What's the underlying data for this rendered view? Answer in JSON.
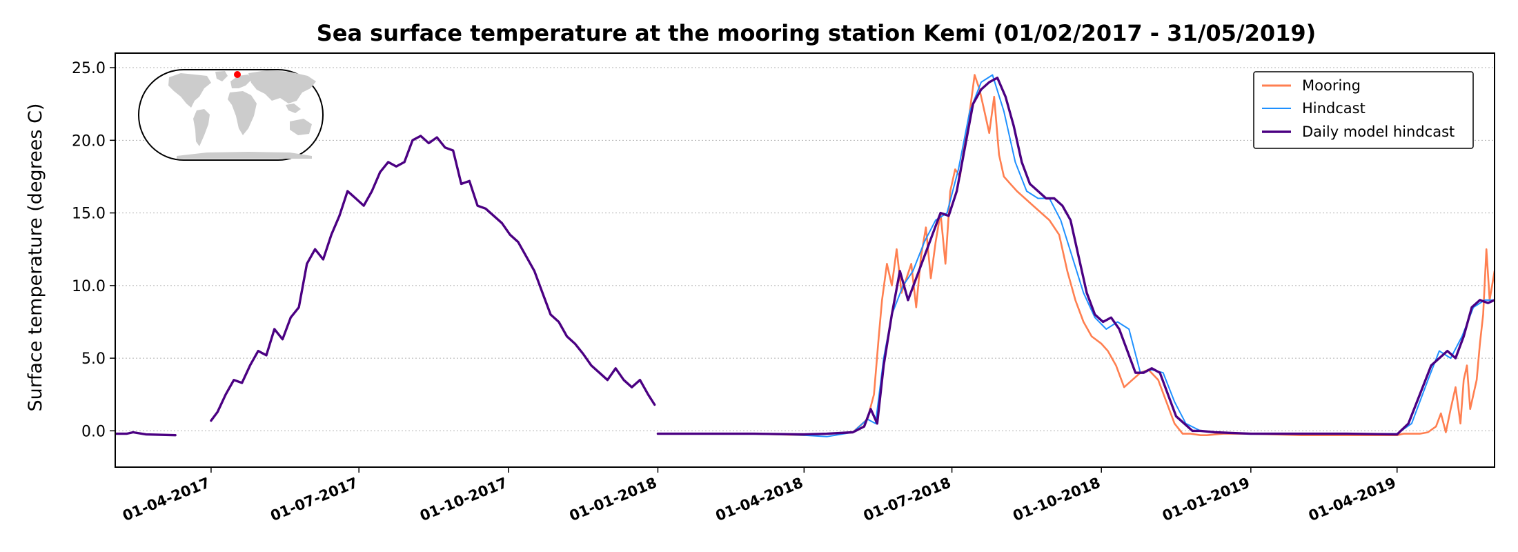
{
  "chart_data": {
    "type": "line",
    "title": "Sea surface temperature at the mooring station Kemi (01/02/2017 - 31/05/2019)",
    "xlabel": "",
    "ylabel": "Surface temperature (degrees C)",
    "xlim": [
      "2017-02-01",
      "2019-05-31"
    ],
    "ylim": [
      -2.5,
      26
    ],
    "yticks": [
      0.0,
      5.0,
      10.0,
      15.0,
      20.0,
      25.0
    ],
    "ytick_labels": [
      "0.0",
      "5.0",
      "10.0",
      "15.0",
      "20.0",
      "25.0"
    ],
    "xticks": [
      "2017-04-01",
      "2017-07-01",
      "2017-10-01",
      "2018-01-01",
      "2018-04-01",
      "2018-07-01",
      "2018-10-01",
      "2019-01-01",
      "2019-04-01"
    ],
    "xtick_labels": [
      "01-04-2017",
      "01-07-2017",
      "01-10-2017",
      "01-01-2018",
      "01-04-2018",
      "01-07-2018",
      "01-10-2018",
      "01-01-2019",
      "01-04-2019"
    ],
    "grid": "y-dotted",
    "legend_position": "top-right",
    "series": [
      {
        "name": "Mooring",
        "color": "#ff7f50",
        "segments": [
          {
            "x": [
              "2018-01-01",
              "2018-02-01",
              "2018-03-01",
              "2018-04-01",
              "2018-05-01",
              "2018-05-10",
              "2018-05-14",
              "2018-05-17",
              "2018-05-19",
              "2018-05-22",
              "2018-05-25",
              "2018-05-28",
              "2018-05-31",
              "2018-06-03",
              "2018-06-06",
              "2018-06-09",
              "2018-06-12",
              "2018-06-15",
              "2018-06-18",
              "2018-06-21",
              "2018-06-24",
              "2018-06-27",
              "2018-06-30",
              "2018-07-03",
              "2018-07-06",
              "2018-07-09",
              "2018-07-12",
              "2018-07-15",
              "2018-07-18",
              "2018-07-21",
              "2018-07-24",
              "2018-07-27",
              "2018-07-30",
              "2018-08-02",
              "2018-08-06",
              "2018-08-10",
              "2018-08-15",
              "2018-08-20",
              "2018-08-25",
              "2018-08-30",
              "2018-09-05",
              "2018-09-10",
              "2018-09-15",
              "2018-09-20",
              "2018-09-25",
              "2018-10-01",
              "2018-10-05",
              "2018-10-10",
              "2018-10-15",
              "2018-10-20",
              "2018-10-25",
              "2018-10-30",
              "2018-11-05",
              "2018-11-10",
              "2018-11-15",
              "2018-11-20",
              "2018-11-25",
              "2018-12-01",
              "2018-12-05",
              "2018-12-15",
              "2019-01-01",
              "2019-02-01",
              "2019-03-01",
              "2019-04-01",
              "2019-04-05",
              "2019-04-10",
              "2019-04-15",
              "2019-04-20",
              "2019-04-25",
              "2019-04-28",
              "2019-05-01",
              "2019-05-04",
              "2019-05-07",
              "2019-05-10",
              "2019-05-12",
              "2019-05-14",
              "2019-05-16",
              "2019-05-18",
              "2019-05-20",
              "2019-05-22",
              "2019-05-24",
              "2019-05-26",
              "2019-05-28",
              "2019-05-31"
            ],
            "y": [
              -0.2,
              -0.2,
              -0.2,
              -0.3,
              -0.1,
              0.8,
              2.5,
              6.5,
              9.0,
              11.5,
              10.0,
              12.5,
              9.5,
              10.5,
              11.5,
              8.5,
              12.0,
              14.0,
              10.5,
              13.0,
              15.0,
              11.5,
              16.5,
              18.0,
              17.5,
              20.0,
              22.0,
              24.5,
              23.5,
              22.0,
              20.5,
              23.0,
              19.0,
              17.5,
              17.0,
              16.5,
              16.0,
              15.5,
              15.0,
              14.5,
              13.5,
              11.0,
              9.0,
              7.5,
              6.5,
              6.0,
              5.5,
              4.5,
              3.0,
              3.5,
              4.0,
              4.2,
              3.5,
              2.0,
              0.5,
              -0.2,
              -0.2,
              -0.3,
              -0.3,
              -0.2,
              -0.2,
              -0.3,
              -0.3,
              -0.3,
              -0.2,
              -0.2,
              -0.2,
              -0.1,
              0.3,
              1.2,
              -0.1,
              1.5,
              3.0,
              0.5,
              3.5,
              4.5,
              1.5,
              2.5,
              3.5,
              6.0,
              8.0,
              12.5,
              9.0,
              11.0
            ]
          }
        ]
      },
      {
        "name": "Hindcast",
        "color": "#1e90ff",
        "segments": [
          {
            "x": [
              "2018-01-01",
              "2018-02-01",
              "2018-03-01",
              "2018-04-01",
              "2018-04-15",
              "2018-05-01",
              "2018-05-10",
              "2018-05-15",
              "2018-05-20",
              "2018-05-25",
              "2018-06-01",
              "2018-06-07",
              "2018-06-14",
              "2018-06-21",
              "2018-06-28",
              "2018-07-05",
              "2018-07-12",
              "2018-07-19",
              "2018-07-26",
              "2018-08-02",
              "2018-08-09",
              "2018-08-16",
              "2018-08-23",
              "2018-08-30",
              "2018-09-06",
              "2018-09-13",
              "2018-09-20",
              "2018-09-27",
              "2018-10-04",
              "2018-10-11",
              "2018-10-18",
              "2018-10-25",
              "2018-11-01",
              "2018-11-08",
              "2018-11-15",
              "2018-11-22",
              "2018-12-01",
              "2018-12-10",
              "2019-01-01",
              "2019-02-01",
              "2019-03-01",
              "2019-04-01",
              "2019-04-10",
              "2019-04-20",
              "2019-04-27",
              "2019-05-04",
              "2019-05-11",
              "2019-05-18",
              "2019-05-25",
              "2019-05-31"
            ],
            "y": [
              -0.2,
              -0.2,
              -0.2,
              -0.3,
              -0.4,
              -0.1,
              0.8,
              0.5,
              5.0,
              8.0,
              10.0,
              11.0,
              13.0,
              14.5,
              15.0,
              18.0,
              22.0,
              24.0,
              24.5,
              22.0,
              18.5,
              16.5,
              16.0,
              16.0,
              14.5,
              12.0,
              9.5,
              7.8,
              7.0,
              7.5,
              7.0,
              4.0,
              4.2,
              4.0,
              2.0,
              0.5,
              0.0,
              -0.1,
              -0.2,
              -0.2,
              -0.2,
              -0.2,
              0.5,
              3.5,
              5.5,
              5.0,
              6.5,
              8.5,
              9.0,
              9.0
            ]
          }
        ]
      },
      {
        "name": "Daily model hindcast",
        "color": "#4b0082",
        "segments": [
          {
            "x": [
              "2017-02-01",
              "2017-02-08",
              "2017-02-12",
              "2017-02-20",
              "2017-03-10"
            ],
            "y": [
              -0.2,
              -0.2,
              -0.1,
              -0.25,
              -0.3
            ]
          },
          {
            "x": [
              "2017-04-01",
              "2017-04-05",
              "2017-04-10",
              "2017-04-15",
              "2017-04-20",
              "2017-04-25",
              "2017-04-30",
              "2017-05-05",
              "2017-05-10",
              "2017-05-15",
              "2017-05-20",
              "2017-05-25",
              "2017-05-30",
              "2017-06-04",
              "2017-06-09",
              "2017-06-14",
              "2017-06-19",
              "2017-06-24",
              "2017-06-29",
              "2017-07-04",
              "2017-07-09",
              "2017-07-14",
              "2017-07-19",
              "2017-07-24",
              "2017-07-29",
              "2017-08-03",
              "2017-08-08",
              "2017-08-13",
              "2017-08-18",
              "2017-08-23",
              "2017-08-28",
              "2017-09-02",
              "2017-09-07",
              "2017-09-12",
              "2017-09-17",
              "2017-09-22",
              "2017-09-27",
              "2017-10-02",
              "2017-10-07",
              "2017-10-12",
              "2017-10-17",
              "2017-10-22",
              "2017-10-27",
              "2017-11-01",
              "2017-11-06",
              "2017-11-11",
              "2017-11-16",
              "2017-11-21",
              "2017-11-26",
              "2017-12-01",
              "2017-12-06",
              "2017-12-11",
              "2017-12-16",
              "2017-12-21",
              "2017-12-26",
              "2017-12-30"
            ],
            "y": [
              0.7,
              1.3,
              2.5,
              3.5,
              3.3,
              4.5,
              5.5,
              5.2,
              7.0,
              6.3,
              7.8,
              8.5,
              11.5,
              12.5,
              11.8,
              13.5,
              14.8,
              16.5,
              16.0,
              15.5,
              16.5,
              17.8,
              18.5,
              18.2,
              18.5,
              20.0,
              20.3,
              19.8,
              20.2,
              19.5,
              19.3,
              17.0,
              17.2,
              15.5,
              15.3,
              14.8,
              14.3,
              13.5,
              13.0,
              12.0,
              11.0,
              9.5,
              8.0,
              7.5,
              6.5,
              6.0,
              5.3,
              4.5,
              4.0,
              3.5,
              4.3,
              3.5,
              3.0,
              3.5,
              2.5,
              1.8
            ]
          },
          {
            "x": [
              "2018-01-01",
              "2018-02-01",
              "2018-03-01",
              "2018-04-01",
              "2018-04-15",
              "2018-05-01",
              "2018-05-08",
              "2018-05-12",
              "2018-05-16",
              "2018-05-20",
              "2018-05-25",
              "2018-05-30",
              "2018-06-04",
              "2018-06-09",
              "2018-06-14",
              "2018-06-19",
              "2018-06-24",
              "2018-06-29",
              "2018-07-04",
              "2018-07-09",
              "2018-07-14",
              "2018-07-19",
              "2018-07-24",
              "2018-07-29",
              "2018-08-03",
              "2018-08-08",
              "2018-08-13",
              "2018-08-18",
              "2018-08-23",
              "2018-08-28",
              "2018-09-02",
              "2018-09-07",
              "2018-09-12",
              "2018-09-17",
              "2018-09-22",
              "2018-09-27",
              "2018-10-02",
              "2018-10-07",
              "2018-10-12",
              "2018-10-17",
              "2018-10-22",
              "2018-10-27",
              "2018-11-01",
              "2018-11-06",
              "2018-11-11",
              "2018-11-16",
              "2018-11-21",
              "2018-11-26",
              "2018-12-01",
              "2018-12-10",
              "2019-01-01",
              "2019-02-01",
              "2019-03-01",
              "2019-04-01",
              "2019-04-08",
              "2019-04-15",
              "2019-04-22",
              "2019-04-27",
              "2019-05-02",
              "2019-05-07",
              "2019-05-12",
              "2019-05-17",
              "2019-05-22",
              "2019-05-27",
              "2019-05-31"
            ],
            "y": [
              -0.2,
              -0.2,
              -0.2,
              -0.25,
              -0.2,
              -0.1,
              0.3,
              1.5,
              0.5,
              4.5,
              8.0,
              11.0,
              9.0,
              10.5,
              12.0,
              13.5,
              15.0,
              14.8,
              16.5,
              19.5,
              22.5,
              23.5,
              24.0,
              24.3,
              23.0,
              21.0,
              18.5,
              17.0,
              16.5,
              16.0,
              16.0,
              15.5,
              14.5,
              12.0,
              9.5,
              8.0,
              7.5,
              7.8,
              7.0,
              5.5,
              4.0,
              4.0,
              4.3,
              4.0,
              2.5,
              1.0,
              0.5,
              0.0,
              0.0,
              -0.1,
              -0.2,
              -0.2,
              -0.2,
              -0.25,
              0.5,
              2.5,
              4.5,
              5.0,
              5.5,
              5.0,
              6.5,
              8.5,
              9.0,
              8.8,
              9.0
            ]
          }
        ]
      }
    ]
  },
  "inset_map": {
    "marker_color": "#ff0000",
    "land_color": "#cccccc"
  }
}
